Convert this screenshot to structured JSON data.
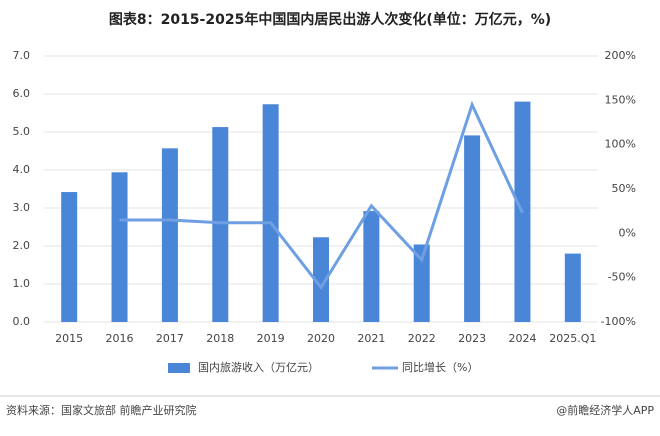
{
  "chart_data": {
    "type": "bar",
    "title": "图表8：2015-2025年中国国内居民出游人次变化(单位：万亿元，%)",
    "categories": [
      "2015",
      "2016",
      "2017",
      "2018",
      "2019",
      "2020",
      "2021",
      "2022",
      "2023",
      "2024",
      "2025.Q1"
    ],
    "series": [
      {
        "name": "国内旅游收入（万亿元）",
        "type": "bar",
        "color": "#4a86d8",
        "values": [
          3.42,
          3.94,
          4.57,
          5.13,
          5.73,
          2.23,
          2.92,
          2.04,
          4.91,
          5.8,
          1.8
        ]
      },
      {
        "name": "同比增长（%）",
        "type": "line",
        "axis": "y2",
        "color": "#6d9fe2",
        "values": [
          null,
          15,
          15,
          12,
          12,
          -61,
          31,
          -30,
          145,
          23,
          null
        ]
      }
    ],
    "ylim": [
      0,
      7
    ],
    "yticks": [
      {
        "value": 0,
        "label": "0.0"
      },
      {
        "value": 1,
        "label": "1.0"
      },
      {
        "value": 2,
        "label": "2.0"
      },
      {
        "value": 3,
        "label": "3.0"
      },
      {
        "value": 4,
        "label": "4.0"
      },
      {
        "value": 5,
        "label": "5.0"
      },
      {
        "value": 6,
        "label": "6.0"
      },
      {
        "value": 7,
        "label": "7.0"
      }
    ],
    "y2lim": [
      -100,
      200
    ],
    "y2ticks": [
      {
        "value": -100,
        "label": "-100%"
      },
      {
        "value": -50,
        "label": "-50%"
      },
      {
        "value": 0,
        "label": "0%"
      },
      {
        "value": 50,
        "label": "50%"
      },
      {
        "value": 100,
        "label": "100%"
      },
      {
        "value": 150,
        "label": "150%"
      },
      {
        "value": 200,
        "label": "200%"
      }
    ],
    "grid": true,
    "legend": "bottom",
    "source": "资料来源：国家文旅部 前瞻产业研究院",
    "credit": "@前瞻经济学人APP"
  }
}
